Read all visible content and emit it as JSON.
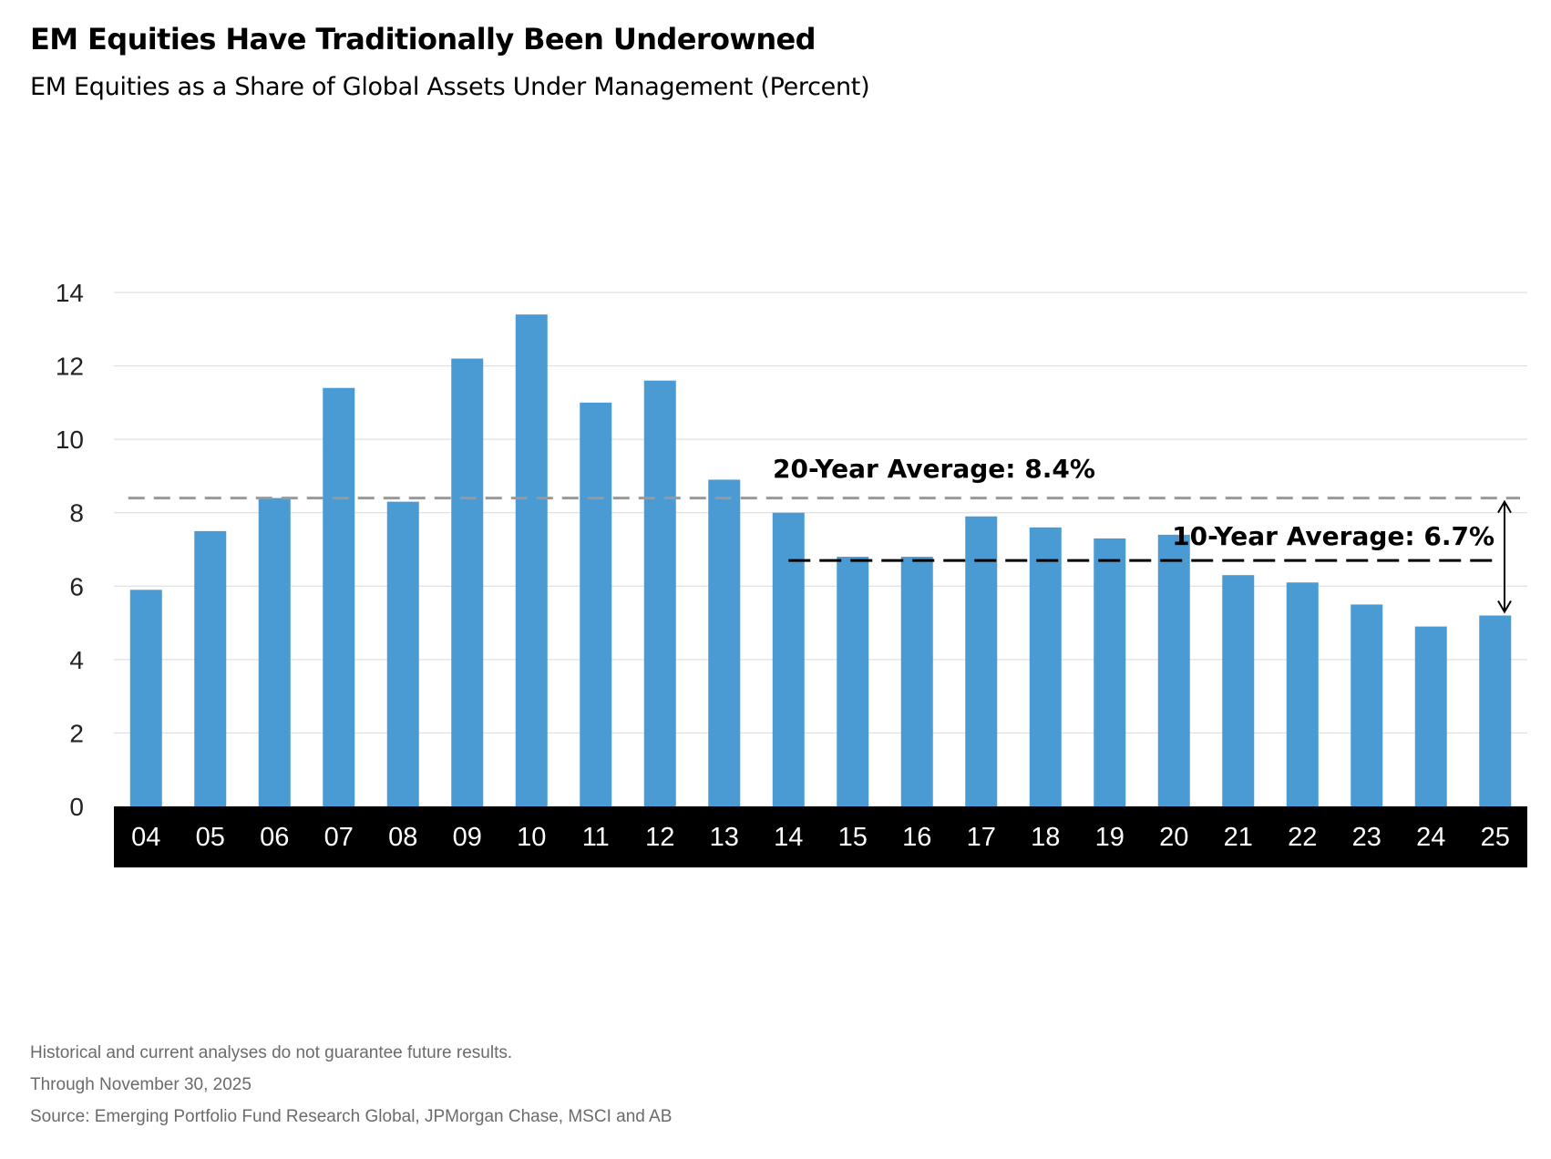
{
  "chart_data": {
    "type": "bar",
    "title": "EM Equities Have Traditionally Been Underowned",
    "subtitle": "EM Equities as a Share of Global Assets Under Management (Percent)",
    "categories": [
      "04",
      "05",
      "06",
      "07",
      "08",
      "09",
      "10",
      "11",
      "12",
      "13",
      "14",
      "15",
      "16",
      "17",
      "18",
      "19",
      "20",
      "21",
      "22",
      "23",
      "24",
      "25"
    ],
    "values": [
      5.9,
      7.5,
      8.4,
      11.4,
      8.3,
      12.2,
      13.4,
      11.0,
      11.6,
      8.9,
      8.0,
      6.8,
      6.8,
      7.9,
      7.6,
      7.3,
      7.4,
      6.3,
      6.1,
      5.5,
      4.9,
      5.2
    ],
    "ylim": [
      0,
      14
    ],
    "yticks": [
      0,
      2,
      4,
      6,
      8,
      10,
      12,
      14
    ],
    "grid": true,
    "bar_color": "#4a9ad4",
    "annotations": [
      {
        "label": "20-Year Average: 8.4%",
        "value": 8.4,
        "from_category": "04",
        "to_category": "25",
        "line_color": "#999999",
        "style": "dashed"
      },
      {
        "label": "10-Year Average: 6.7%",
        "value": 6.7,
        "from_category": "14",
        "to_category": "25",
        "line_color": "#000000",
        "style": "dashed"
      }
    ],
    "arrow": {
      "category": "25",
      "from_value": 8.4,
      "to_value": 5.2
    }
  },
  "notes": [
    "Historical and current analyses do not guarantee future results.",
    "Through November 30, 2025",
    "Source: Emerging Portfolio Fund Research Global, JPMorgan Chase, MSCI and AB"
  ]
}
